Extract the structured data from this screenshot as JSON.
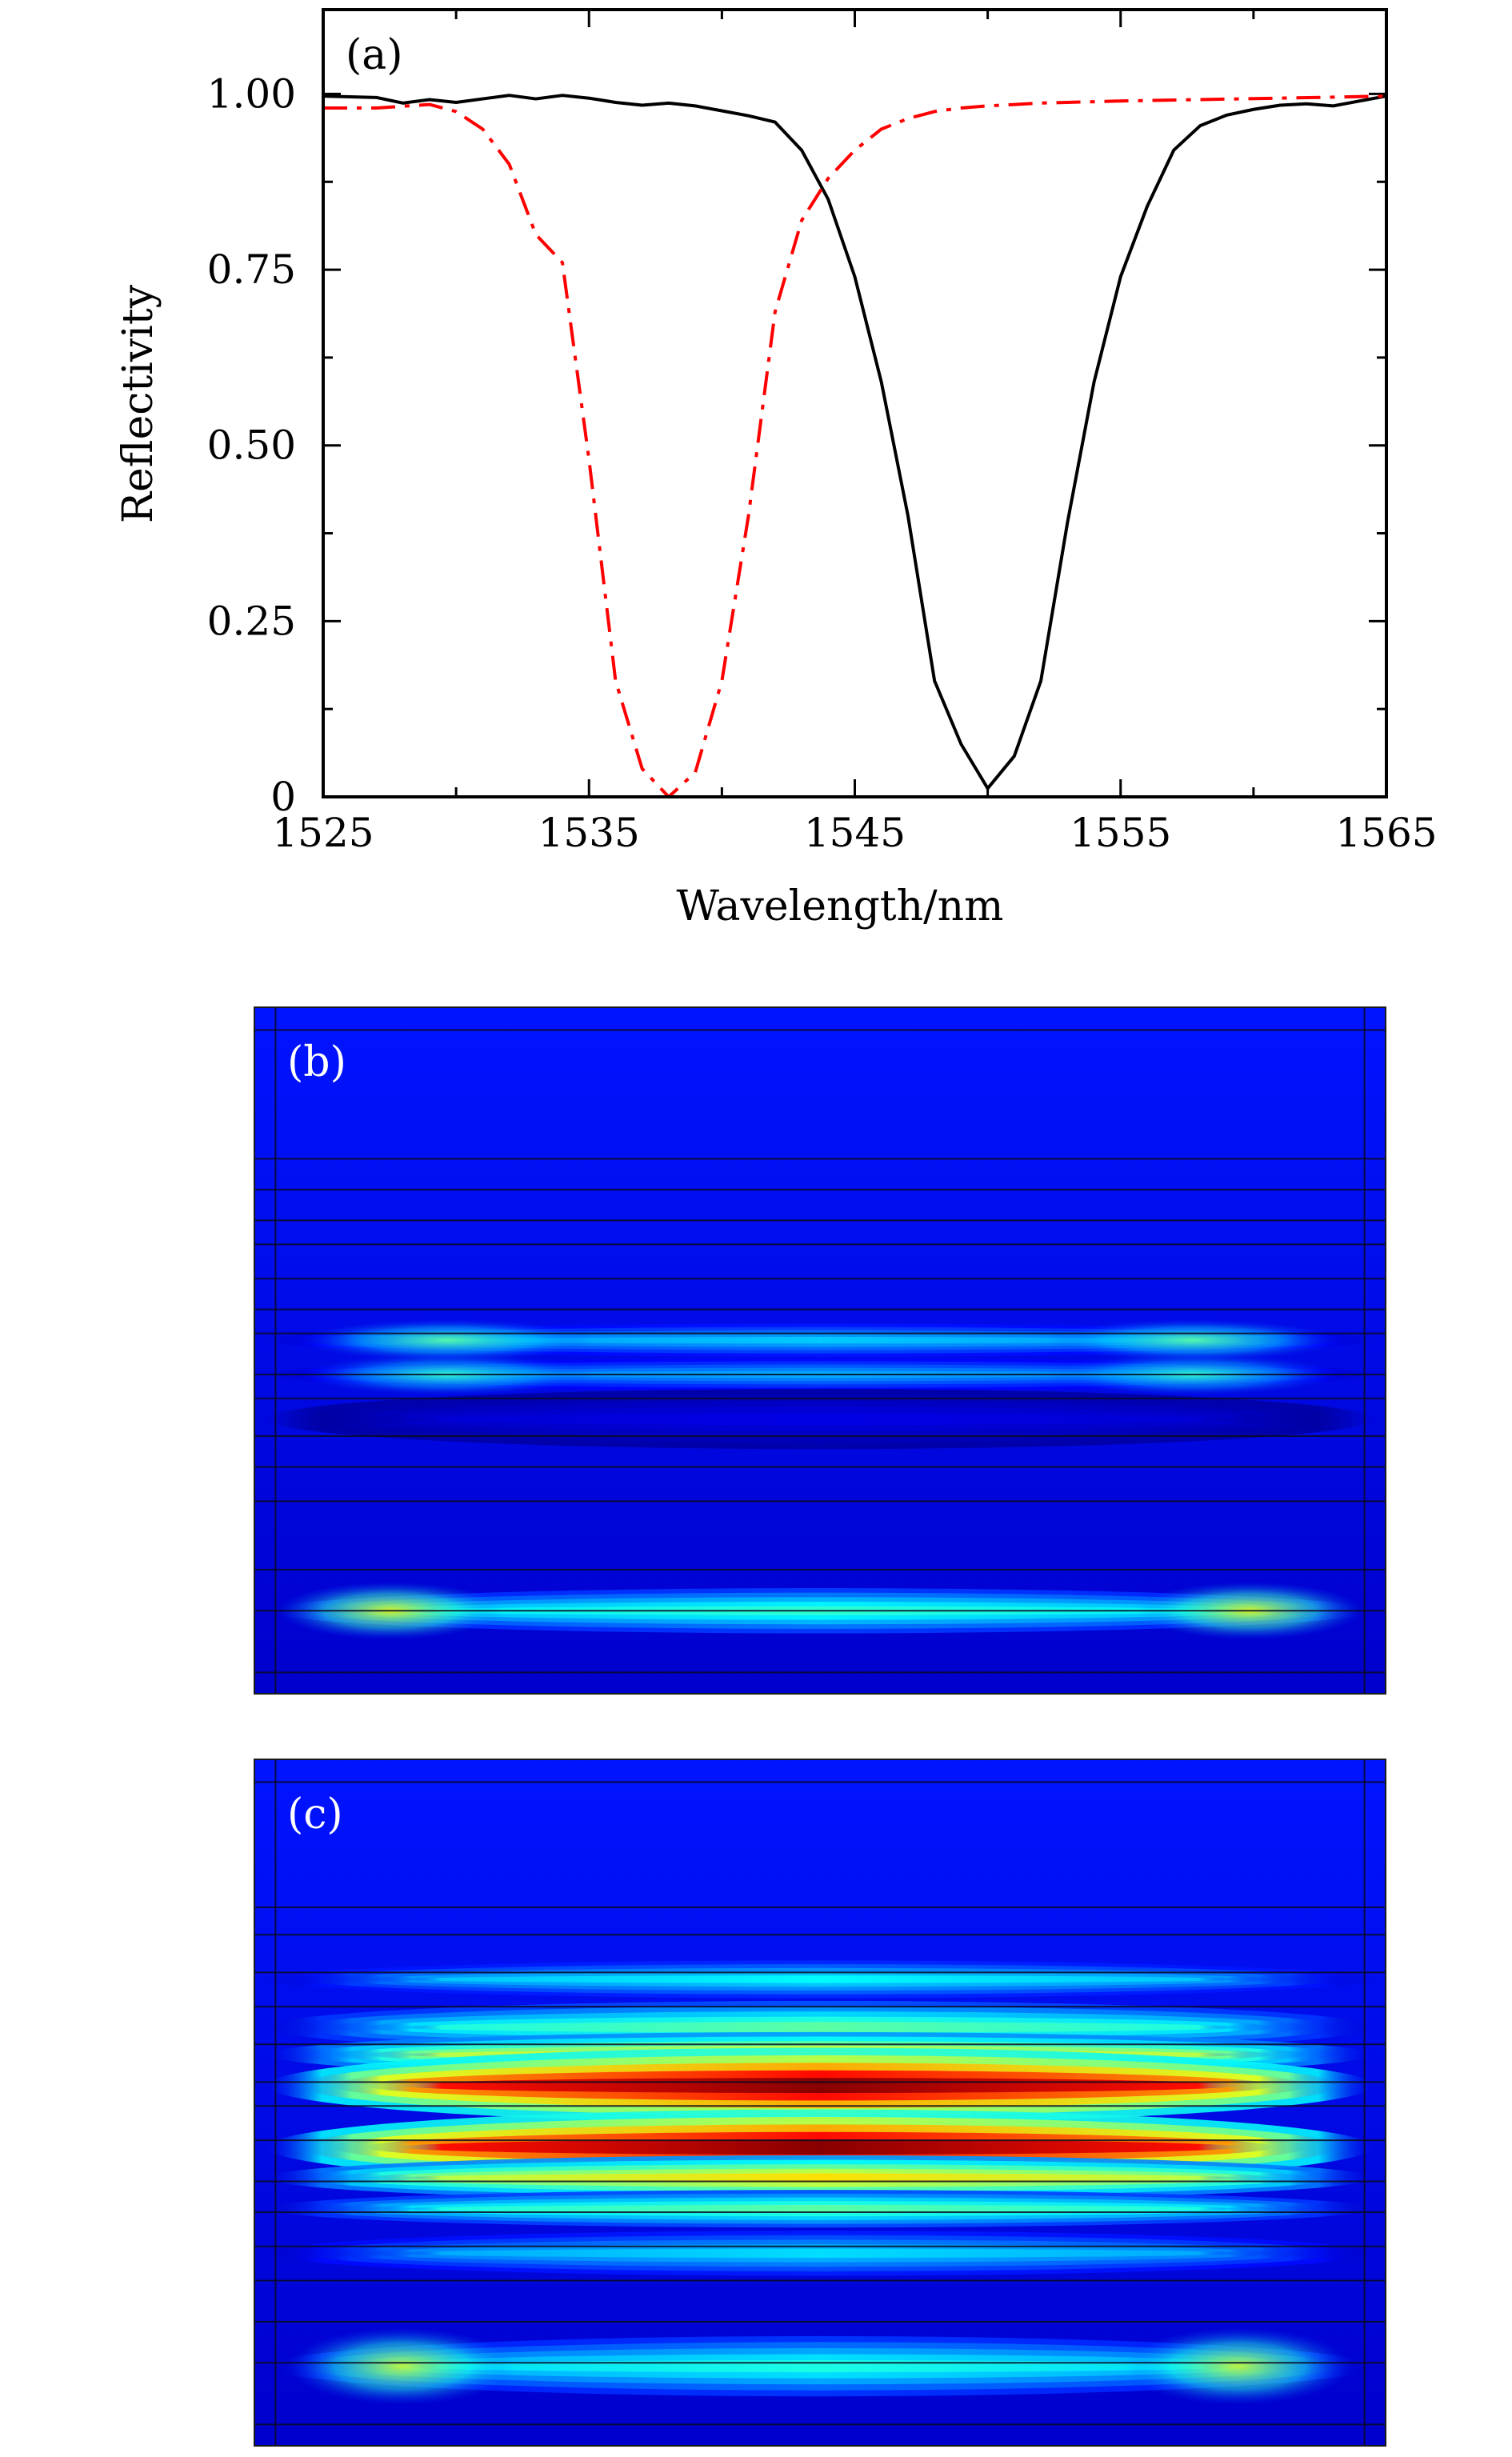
{
  "chart_data": [
    {
      "type": "line",
      "panel_label": "(a)",
      "xlabel": "Wavelength/nm",
      "ylabel": "Reflectivity",
      "xlim": [
        1525,
        1565
      ],
      "ylim": [
        0,
        1.12
      ],
      "x_ticks": [
        1525,
        1535,
        1545,
        1555,
        1565
      ],
      "x_tick_labels": [
        "1525",
        "1535",
        "1545",
        "1555",
        "1565"
      ],
      "y_ticks": [
        0,
        0.25,
        0.5,
        0.75,
        1.0
      ],
      "y_tick_labels": [
        "0",
        "0.25",
        "0.50",
        "0.75",
        "1.00"
      ],
      "series": [
        {
          "name": "solid",
          "color": "#000000",
          "style": "solid",
          "x": [
            1525,
            1527,
            1528,
            1529,
            1530,
            1531,
            1532,
            1533,
            1534,
            1535,
            1536,
            1537,
            1538,
            1539,
            1540,
            1541,
            1542,
            1543,
            1544,
            1545,
            1546,
            1547,
            1548,
            1549,
            1550,
            1551,
            1552,
            1553,
            1554,
            1555,
            1556,
            1557,
            1558,
            1559,
            1560,
            1561,
            1562,
            1563,
            1564,
            1565
          ],
          "y": [
            0.997,
            0.995,
            0.987,
            0.992,
            0.988,
            0.993,
            0.998,
            0.993,
            0.998,
            0.994,
            0.988,
            0.984,
            0.987,
            0.983,
            0.976,
            0.969,
            0.96,
            0.92,
            0.85,
            0.74,
            0.59,
            0.4,
            0.165,
            0.075,
            0.012,
            0.058,
            0.165,
            0.39,
            0.59,
            0.74,
            0.84,
            0.92,
            0.955,
            0.97,
            0.978,
            0.984,
            0.986,
            0.983,
            0.99,
            0.997
          ]
        },
        {
          "name": "dash-dot",
          "color": "#ff0000",
          "style": "dashdot",
          "x": [
            1525,
            1527,
            1529,
            1530,
            1531,
            1532,
            1533,
            1534,
            1535,
            1536,
            1537,
            1538,
            1539,
            1540,
            1541,
            1542,
            1543,
            1544,
            1545,
            1546,
            1547,
            1548,
            1549,
            1550,
            1552,
            1555,
            1558,
            1561,
            1565
          ],
          "y": [
            0.98,
            0.98,
            0.985,
            0.975,
            0.95,
            0.9,
            0.8,
            0.76,
            0.48,
            0.165,
            0.04,
            0.0,
            0.035,
            0.165,
            0.4,
            0.69,
            0.82,
            0.88,
            0.92,
            0.95,
            0.965,
            0.975,
            0.98,
            0.983,
            0.987,
            0.99,
            0.992,
            0.994,
            0.997
          ]
        }
      ]
    },
    {
      "type": "heatmap",
      "panel_label": "(b)",
      "colormap": [
        "#000080",
        "#0000ff",
        "#00ffff",
        "#ffff00",
        "#ff0000",
        "#800000"
      ],
      "layer_boundaries": [
        0.032,
        0.22,
        0.265,
        0.31,
        0.345,
        0.395,
        0.44,
        0.475,
        0.535,
        0.57,
        0.625,
        0.67,
        0.72,
        0.82,
        0.88,
        0.97
      ],
      "side_boundaries": [
        0.018,
        0.982
      ],
      "field_bands": [
        {
          "center": 0.485,
          "width": 0.022,
          "intensity": 0.3,
          "lobes": [
            0.17,
            0.83
          ],
          "lobe_width": 0.13
        },
        {
          "center": 0.535,
          "width": 0.022,
          "intensity": 0.27,
          "lobes": [
            0.17,
            0.83
          ],
          "lobe_width": 0.13
        },
        {
          "center": 0.6,
          "width": 0.04,
          "intensity": 0.08,
          "lobes": [],
          "lobe_width": 0
        },
        {
          "center": 0.88,
          "width": 0.03,
          "intensity": 0.4,
          "lobes": [
            0.12,
            0.88
          ],
          "lobe_width": 0.1
        }
      ]
    },
    {
      "type": "heatmap",
      "panel_label": "(c)",
      "colormap": [
        "#000080",
        "#0000ff",
        "#00ffff",
        "#ffff00",
        "#ff0000",
        "#800000"
      ],
      "layer_boundaries": [
        0.032,
        0.215,
        0.255,
        0.31,
        0.36,
        0.415,
        0.47,
        0.505,
        0.555,
        0.615,
        0.66,
        0.71,
        0.76,
        0.82,
        0.88,
        0.97
      ],
      "side_boundaries": [
        0.018,
        0.982
      ],
      "field_bands": [
        {
          "center": 0.32,
          "width": 0.025,
          "intensity": 0.35,
          "lobes": [],
          "lobe_width": 0
        },
        {
          "center": 0.39,
          "width": 0.035,
          "intensity": 0.45,
          "lobes": [],
          "lobe_width": 0
        },
        {
          "center": 0.43,
          "width": 0.03,
          "intensity": 0.65,
          "lobes": [],
          "lobe_width": 0
        },
        {
          "center": 0.475,
          "width": 0.05,
          "intensity": 1.0,
          "lobes": [],
          "lobe_width": 0
        },
        {
          "center": 0.565,
          "width": 0.05,
          "intensity": 1.0,
          "lobes": [],
          "lobe_width": 0
        },
        {
          "center": 0.61,
          "width": 0.03,
          "intensity": 0.65,
          "lobes": [],
          "lobe_width": 0
        },
        {
          "center": 0.655,
          "width": 0.025,
          "intensity": 0.45,
          "lobes": [],
          "lobe_width": 0
        },
        {
          "center": 0.72,
          "width": 0.03,
          "intensity": 0.32,
          "lobes": [],
          "lobe_width": 0
        },
        {
          "center": 0.885,
          "width": 0.04,
          "intensity": 0.38,
          "lobes": [
            0.13,
            0.87
          ],
          "lobe_width": 0.1
        }
      ]
    }
  ]
}
